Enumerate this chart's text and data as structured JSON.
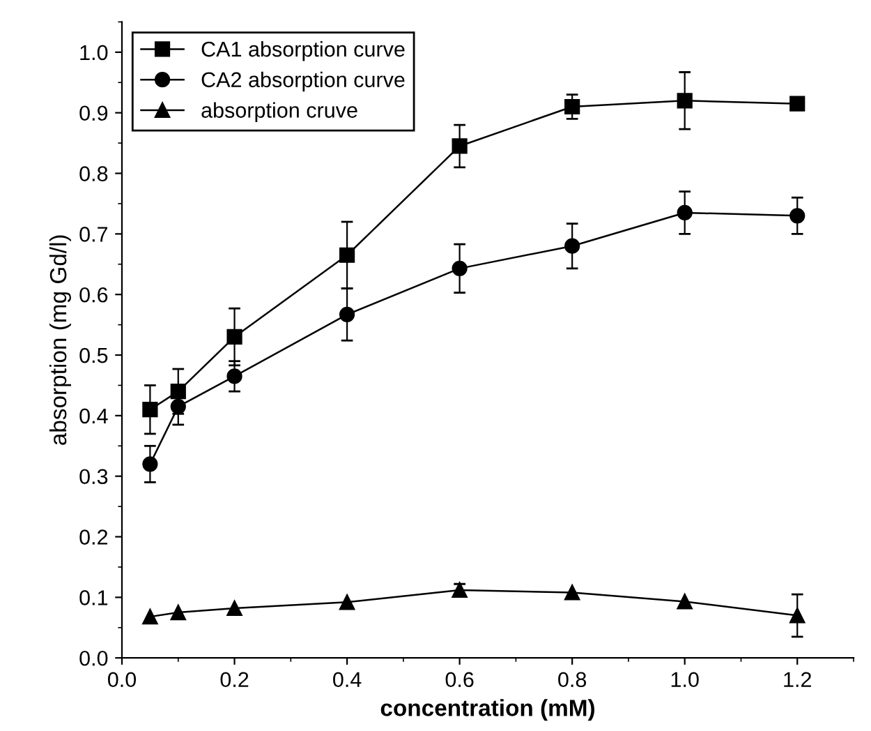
{
  "chart_data": {
    "type": "line",
    "xlabel": "concentration (mM)",
    "ylabel": "absorption (mg Gd/l)",
    "x": [
      0.05,
      0.1,
      0.2,
      0.4,
      0.6,
      0.8,
      1.0,
      1.2
    ],
    "xlim": [
      0.0,
      1.3
    ],
    "xticks": [
      {
        "value": 0.0,
        "label": "0.0"
      },
      0.2,
      0.4,
      0.6,
      0.8,
      {
        "value": 1.0,
        "label": "1.0"
      },
      1.2
    ],
    "ylim": [
      0.0,
      1.05
    ],
    "yticks": [
      {
        "value": 0.0,
        "label": "0.0"
      },
      0.1,
      0.2,
      0.3,
      0.4,
      0.5,
      0.6,
      0.7,
      0.8,
      0.9,
      {
        "value": 1.0,
        "label": "1.0"
      }
    ],
    "grid": false,
    "legend": "top left",
    "line_style": "solid",
    "series": [
      {
        "name": "CA1 absorption curve",
        "color": "#000000",
        "marker": "square",
        "values": [
          0.41,
          0.44,
          0.53,
          0.665,
          0.845,
          0.91,
          0.92,
          0.915
        ],
        "errors": [
          0.04,
          0.037,
          0.047,
          0.055,
          0.035,
          0.02,
          0.047,
          null
        ]
      },
      {
        "name": "CA2 absorption curve",
        "color": "#000000",
        "marker": "circle",
        "values": [
          0.32,
          0.415,
          0.465,
          0.567,
          0.643,
          0.68,
          0.735,
          0.73
        ],
        "errors": [
          0.03,
          0.03,
          0.025,
          0.043,
          0.04,
          0.037,
          0.035,
          0.03
        ]
      },
      {
        "name": "absorption cruve",
        "color": "#000000",
        "marker": "triangle",
        "values": [
          0.068,
          0.075,
          0.082,
          0.092,
          0.112,
          0.108,
          0.093,
          0.07
        ],
        "errors": [
          null,
          null,
          null,
          null,
          0.01,
          null,
          null,
          0.035
        ]
      }
    ]
  }
}
